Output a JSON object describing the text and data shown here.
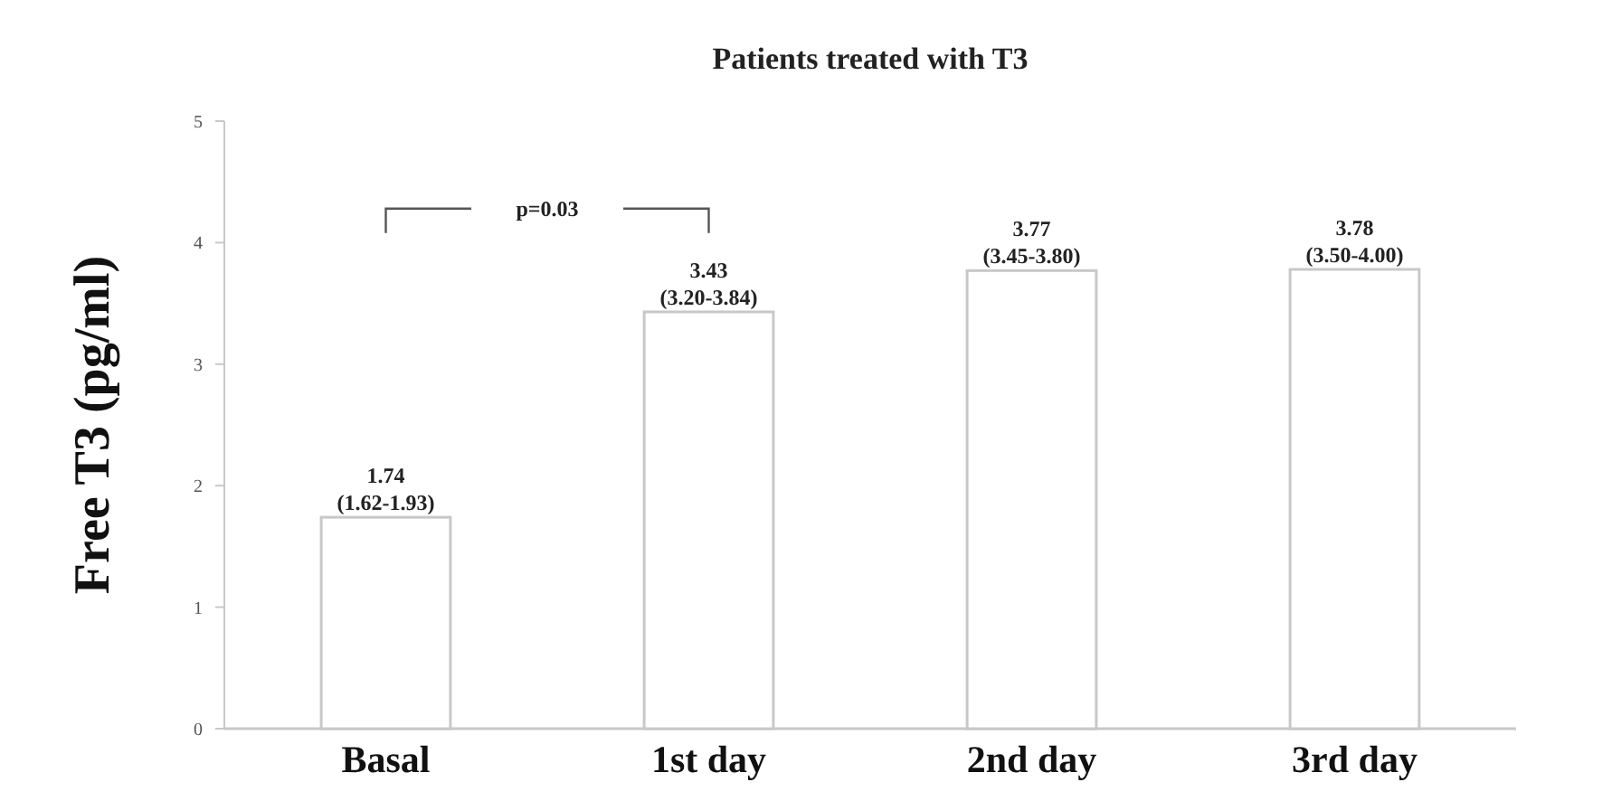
{
  "chart_data": {
    "type": "bar",
    "title": "Patients treated with T3",
    "ylabel": "Free T3 (pg/ml)",
    "categories": [
      "Basal",
      "1st day",
      "2nd day",
      "3rd day"
    ],
    "values": [
      1.74,
      3.43,
      3.77,
      3.78
    ],
    "value_labels": [
      "1.74\n(1.62-1.93)",
      "3.43\n(3.20-3.84)",
      "3.77\n(3.45-3.80)",
      "3.78\n(3.50-4.00)"
    ],
    "color": "#ffffff",
    "ylim": [
      0,
      5
    ],
    "yticks": [
      0,
      1,
      2,
      3,
      4,
      5
    ],
    "annotations": [
      "p=0.03"
    ]
  }
}
